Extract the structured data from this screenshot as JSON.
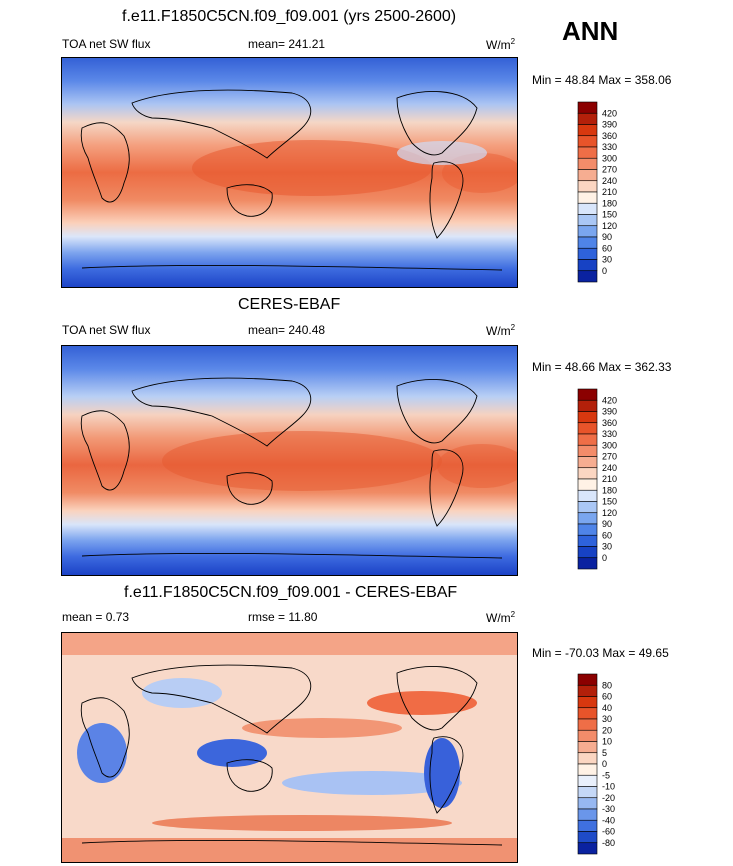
{
  "season": "ANN",
  "panels": [
    {
      "title": "f.e11.F1850C5CN.f09_f09.001 (yrs 2500-2600)",
      "left_label": "TOA net SW flux",
      "mean_text": "mean= 241.21",
      "right_label": "W/m",
      "right_label_sup": "2",
      "minmax": "Min =  48.84 Max = 358.06",
      "colorbar_levels": [
        "420",
        "390",
        "360",
        "330",
        "300",
        "270",
        "240",
        "210",
        "180",
        "150",
        "120",
        "90",
        "60",
        "30",
        "0"
      ],
      "colorbar_colors": [
        "#8b0000",
        "#b3200a",
        "#d8380f",
        "#e8542a",
        "#ef6e47",
        "#f38c6a",
        "#f6ad91",
        "#fbd6c2",
        "#fff2e6",
        "#d9e6fb",
        "#aac7f5",
        "#7aa6ef",
        "#4f84e8",
        "#2e62db",
        "#1742c4",
        "#0a22a0"
      ]
    },
    {
      "title": "CERES-EBAF",
      "left_label": "TOA net SW flux",
      "mean_text": "mean= 240.48",
      "right_label": "W/m",
      "right_label_sup": "2",
      "minmax": "Min =  48.66 Max = 362.33",
      "colorbar_levels": [
        "420",
        "390",
        "360",
        "330",
        "300",
        "270",
        "240",
        "210",
        "180",
        "150",
        "120",
        "90",
        "60",
        "30",
        "0"
      ],
      "colorbar_colors": [
        "#8b0000",
        "#b3200a",
        "#d8380f",
        "#e8542a",
        "#ef6e47",
        "#f38c6a",
        "#f6ad91",
        "#fbd6c2",
        "#fff2e6",
        "#d9e6fb",
        "#aac7f5",
        "#7aa6ef",
        "#4f84e8",
        "#2e62db",
        "#1742c4",
        "#0a22a0"
      ]
    },
    {
      "title": "f.e11.F1850C5CN.f09_f09.001 - CERES-EBAF",
      "left_label": "mean =   0.73",
      "mean_text": "rmse =  11.80",
      "right_label": "W/m",
      "right_label_sup": "2",
      "minmax": "Min = -70.03 Max =  49.65",
      "colorbar_levels": [
        "80",
        "60",
        "40",
        "30",
        "20",
        "10",
        "5",
        "0",
        "-5",
        "-10",
        "-20",
        "-30",
        "-40",
        "-60",
        "-80"
      ],
      "colorbar_colors": [
        "#8b0000",
        "#b3200a",
        "#d8380f",
        "#e8542a",
        "#ef6e47",
        "#f38c6a",
        "#f6ad91",
        "#fbd6c2",
        "#fff2e6",
        "#e9f0fc",
        "#c5d8f7",
        "#97b8f1",
        "#6a96ea",
        "#3f70df",
        "#1e4bc8",
        "#0a22a0"
      ]
    }
  ],
  "chart_data": [
    {
      "type": "heatmap",
      "title": "f.e11.F1850C5CN.f09_f09.001 (yrs 2500-2600)",
      "variable": "TOA net SW flux",
      "units": "W/m2",
      "mean": 241.21,
      "min": 48.84,
      "max": 358.06,
      "levels": [
        0,
        30,
        60,
        90,
        120,
        150,
        180,
        210,
        240,
        270,
        300,
        330,
        360,
        390,
        420
      ]
    },
    {
      "type": "heatmap",
      "title": "CERES-EBAF",
      "variable": "TOA net SW flux",
      "units": "W/m2",
      "mean": 240.48,
      "min": 48.66,
      "max": 362.33,
      "levels": [
        0,
        30,
        60,
        90,
        120,
        150,
        180,
        210,
        240,
        270,
        300,
        330,
        360,
        390,
        420
      ]
    },
    {
      "type": "heatmap",
      "title": "f.e11.F1850C5CN.f09_f09.001 - CERES-EBAF",
      "units": "W/m2",
      "mean": 0.73,
      "rmse": 11.8,
      "min": -70.03,
      "max": 49.65,
      "levels": [
        -80,
        -60,
        -40,
        -30,
        -20,
        -10,
        -5,
        0,
        5,
        10,
        20,
        30,
        40,
        60,
        80
      ]
    }
  ]
}
